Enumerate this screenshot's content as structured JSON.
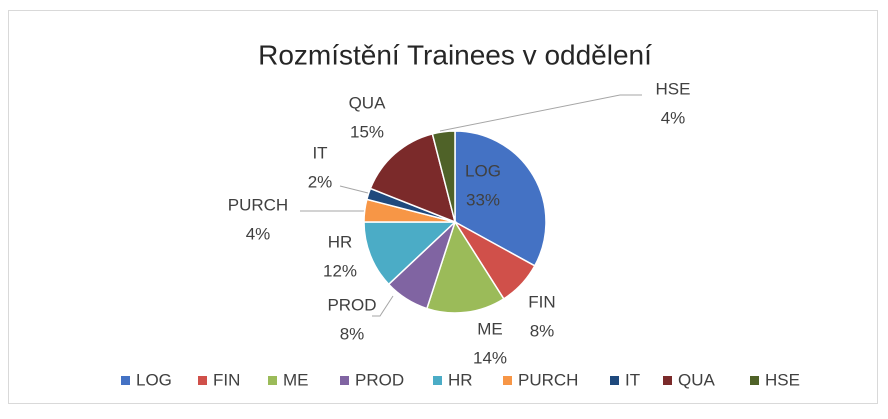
{
  "chart_data": {
    "type": "pie",
    "title": "Rozmístění Trainees v oddělení",
    "categories": [
      "LOG",
      "FIN",
      "ME",
      "PROD",
      "HR",
      "PURCH",
      "IT",
      "QUA",
      "HSE"
    ],
    "values": [
      33,
      8,
      14,
      8,
      12,
      4,
      2,
      15,
      4
    ],
    "value_labels": [
      "33%",
      "8%",
      "14%",
      "8%",
      "12%",
      "4%",
      "2%",
      "15%",
      "4%"
    ],
    "colors": [
      "#4472c4",
      "#d0504a",
      "#9bbb59",
      "#8064a2",
      "#4bacc6",
      "#f79646",
      "#1f497d",
      "#7b2a2a",
      "#4f6228"
    ],
    "legend": "bottom"
  }
}
